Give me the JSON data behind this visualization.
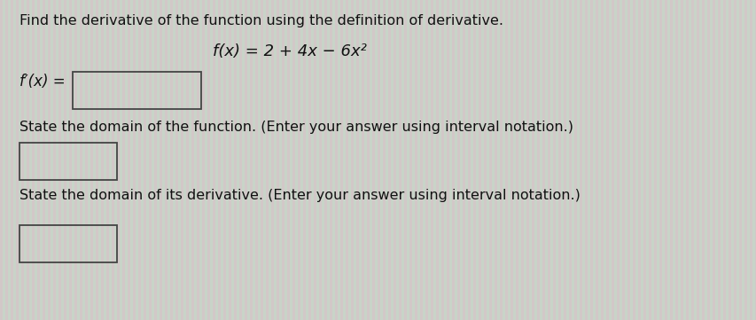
{
  "background_color": "#cdd5c8",
  "stripe_color1": "#d4c8c8",
  "stripe_color2": "#c8d4c8",
  "box_facecolor": "#cdd5c8",
  "box_edgecolor": "#444444",
  "text_color": "#111111",
  "title_text": "Find the derivative of the function using the definition of derivative.",
  "function_text": "f(x) = 2 + 4x − 6x²",
  "fprime_label": "f′(x) =",
  "domain_function_text": "State the domain of the function. (Enter your answer using interval notation.)",
  "domain_derivative_text": "State the domain of its derivative. (Enter your answer using interval notation.)",
  "title_fontsize": 11.5,
  "function_fontsize": 13,
  "label_fontsize": 12,
  "body_fontsize": 11.5,
  "fig_width": 8.54,
  "fig_height": 3.61,
  "dpi": 100
}
